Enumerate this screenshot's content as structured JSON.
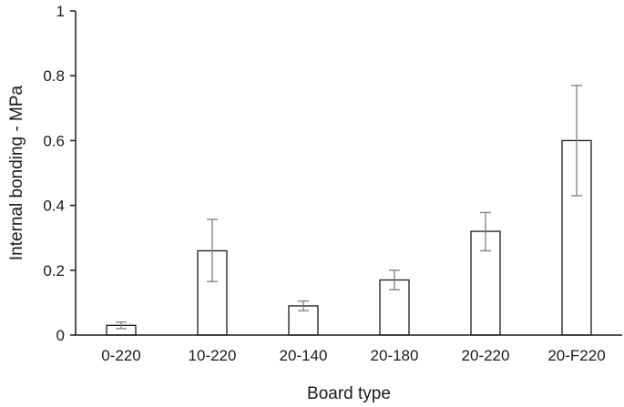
{
  "chart_data": {
    "type": "bar",
    "title": "",
    "xlabel": "Board type",
    "ylabel": "Internal bonding - MPa",
    "categories": [
      "0-220",
      "10-220",
      "20-140",
      "20-180",
      "20-220",
      "20-F220"
    ],
    "values": [
      0.03,
      0.26,
      0.09,
      0.17,
      0.32,
      0.6
    ],
    "error_low": [
      0.02,
      0.165,
      0.075,
      0.14,
      0.26,
      0.43
    ],
    "error_high": [
      0.04,
      0.357,
      0.105,
      0.2,
      0.378,
      0.77
    ],
    "ylim": [
      0,
      1
    ],
    "yticks": [
      "0",
      "0.2",
      "0.4",
      "0.6",
      "0.8",
      "1"
    ],
    "ytick_values": [
      0,
      0.2,
      0.4,
      0.6,
      0.8,
      1
    ],
    "grid": false,
    "legend": "none",
    "colors": {
      "bar_fill": "#ffffff",
      "bar_stroke": "#1a1a1a",
      "error_bar": "#7f7f7f",
      "axis": "#1a1a1a"
    }
  }
}
